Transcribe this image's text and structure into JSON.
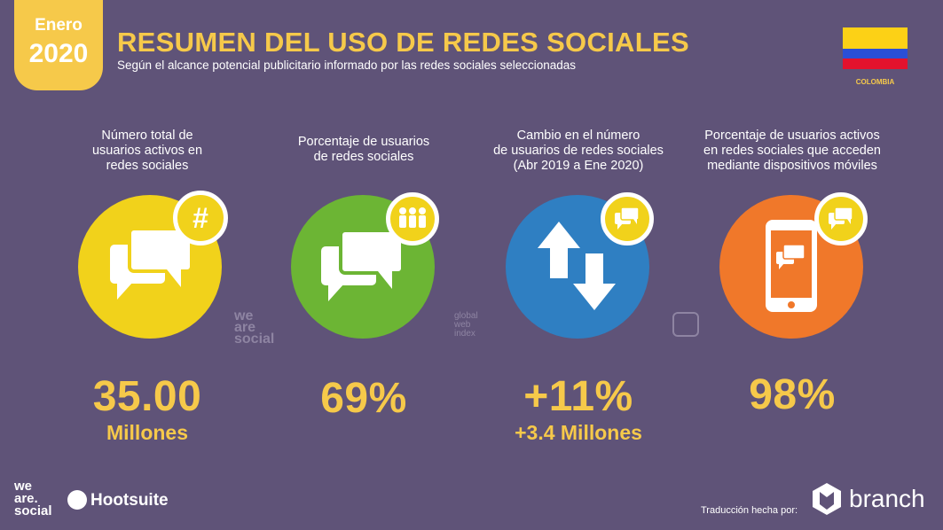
{
  "badge": {
    "month": "Enero",
    "year": "2020"
  },
  "header": {
    "title": "RESUMEN DEL USO DE REDES SOCIALES",
    "subtitle": "Según el alcance potencial publicitario informado por las redes sociales seleccionadas"
  },
  "flag": {
    "country": "COLOMBIA",
    "colors": [
      "#fcd116",
      "#2a4fd6",
      "#e3122d"
    ]
  },
  "stats": [
    {
      "label_lines": [
        "Número total de",
        "usuarios activos en",
        "redes sociales"
      ],
      "value": "35.00",
      "unit": "Millones",
      "circle_color": "#f1d21b",
      "icon": "hashtag-icon"
    },
    {
      "label_lines": [
        "Porcentaje de usuarios",
        "de redes sociales"
      ],
      "value": "69%",
      "unit": "",
      "circle_color": "#6cb534",
      "icon": "people-icon"
    },
    {
      "label_lines": [
        "Cambio en el número",
        "de usuarios de redes sociales",
        "(Abr 2019 a Ene 2020)"
      ],
      "value": "+11%",
      "unit": "+3.4 Millones",
      "circle_color": "#2f7fc2",
      "icon": "chat-icon"
    },
    {
      "label_lines": [
        "Porcentaje de usuarios activos",
        "en redes sociales que acceden",
        "mediante dispositivos móviles"
      ],
      "value": "98%",
      "unit": "",
      "circle_color": "#f0782a",
      "icon": "chat-icon"
    }
  ],
  "watermarks": {
    "we_are_social": [
      "we",
      "are",
      "social"
    ],
    "global_web_index": [
      "global",
      "web",
      "index"
    ]
  },
  "footer": {
    "we_are_social": [
      "we",
      "are.",
      "social"
    ],
    "hootsuite": "Hootsuite",
    "credit": "Traducción hecha por:",
    "branch": "branch"
  }
}
